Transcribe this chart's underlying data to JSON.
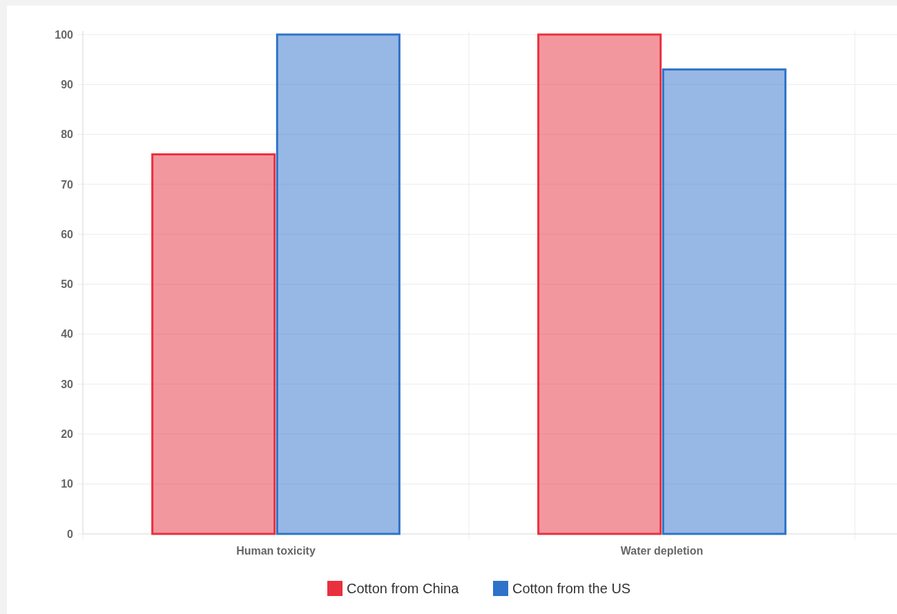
{
  "chart_data": {
    "type": "bar",
    "categories": [
      "Human toxicity",
      "Water depletion"
    ],
    "series": [
      {
        "name": "Cotton from China",
        "color": "#e8303e",
        "values": [
          76,
          100
        ]
      },
      {
        "name": "Cotton from the US",
        "color": "#2f72c9",
        "values": [
          100,
          93
        ]
      }
    ],
    "ylim": [
      0,
      100
    ],
    "yticks": [
      0,
      10,
      20,
      30,
      40,
      50,
      60,
      70,
      80,
      90,
      100
    ],
    "grid": true,
    "legend": "bottom"
  }
}
